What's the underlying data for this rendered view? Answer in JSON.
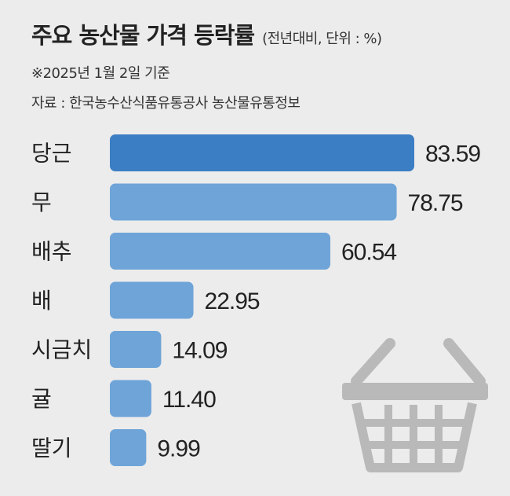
{
  "header": {
    "title": "주요 농산물 가격 등락률",
    "unit": "(전년대비, 단위 : %)",
    "date_note": "※2025년 1월 2일 기준",
    "source": "자료 : 한국농수산식품유통공사 농산물유통정보"
  },
  "colors": {
    "highlight": "#3c7ec4",
    "bar": "#6ea4d8",
    "background": "#ececec",
    "basket": "#b9b9b9"
  },
  "icons": [
    "shopping-basket-icon"
  ],
  "chart_data": {
    "type": "bar",
    "orientation": "horizontal",
    "categories": [
      "당근",
      "무",
      "배추",
      "배",
      "시금치",
      "귤",
      "딸기"
    ],
    "values": [
      83.59,
      78.75,
      60.54,
      22.95,
      14.09,
      11.4,
      9.99
    ],
    "value_labels": [
      "83.59",
      "78.75",
      "60.54",
      "22.95",
      "14.09",
      "11.40",
      "9.99"
    ],
    "highlighted_category": "당근",
    "xlim": [
      0,
      83.59
    ]
  }
}
